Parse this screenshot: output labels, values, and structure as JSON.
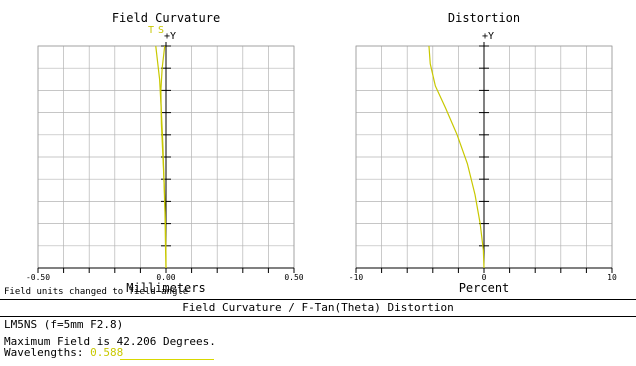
{
  "report": {
    "message": "Field units changed to field angle",
    "title": "Field Curvature / F-Tan(Theta) Distortion",
    "lens": "LM5NS (f=5mm F2.8)",
    "max_field": "Maximum Field is 42.206 Degrees.",
    "wavelengths_label": "Wavelengths:",
    "wavelength_value": "0.588"
  },
  "chart_data": [
    {
      "type": "line",
      "title": "Field Curvature",
      "xlabel": "Millimeters",
      "ylabel": "+Y",
      "legend": [
        "T",
        "S"
      ],
      "legend_color": "#c8c800",
      "line_color": "#c8c800",
      "xlim": [
        -0.5,
        0.5
      ],
      "ylim": [
        0,
        1
      ],
      "x_ticks": [
        "-0.50",
        "0.00",
        "0.50"
      ],
      "series": [
        {
          "name": "T",
          "points": [
            [
              -0.04,
              1.0
            ],
            [
              -0.035,
              0.95
            ],
            [
              -0.025,
              0.85
            ],
            [
              -0.018,
              0.7
            ],
            [
              -0.012,
              0.55
            ],
            [
              -0.008,
              0.4
            ],
            [
              -0.004,
              0.25
            ],
            [
              -0.002,
              0.1
            ],
            [
              0.0,
              0.0
            ]
          ]
        },
        {
          "name": "S",
          "points": [
            [
              -0.005,
              1.0
            ],
            [
              -0.015,
              0.9
            ],
            [
              -0.02,
              0.8
            ],
            [
              -0.018,
              0.65
            ],
            [
              -0.012,
              0.5
            ],
            [
              -0.006,
              0.35
            ],
            [
              -0.002,
              0.2
            ],
            [
              0.0,
              0.05
            ],
            [
              0.0,
              0.0
            ]
          ]
        }
      ]
    },
    {
      "type": "line",
      "title": "Distortion",
      "xlabel": "Percent",
      "ylabel": "+Y",
      "line_color": "#c8c800",
      "xlim": [
        -10,
        10
      ],
      "ylim": [
        0,
        1
      ],
      "x_ticks": [
        "-10",
        "0",
        "10"
      ],
      "series": [
        {
          "points": [
            [
              -4.3,
              1.0
            ],
            [
              -4.2,
              0.92
            ],
            [
              -3.8,
              0.82
            ],
            [
              -3.0,
              0.72
            ],
            [
              -2.1,
              0.6
            ],
            [
              -1.3,
              0.47
            ],
            [
              -0.7,
              0.33
            ],
            [
              -0.3,
              0.2
            ],
            [
              -0.05,
              0.08
            ],
            [
              0.0,
              0.0
            ]
          ]
        }
      ]
    }
  ]
}
